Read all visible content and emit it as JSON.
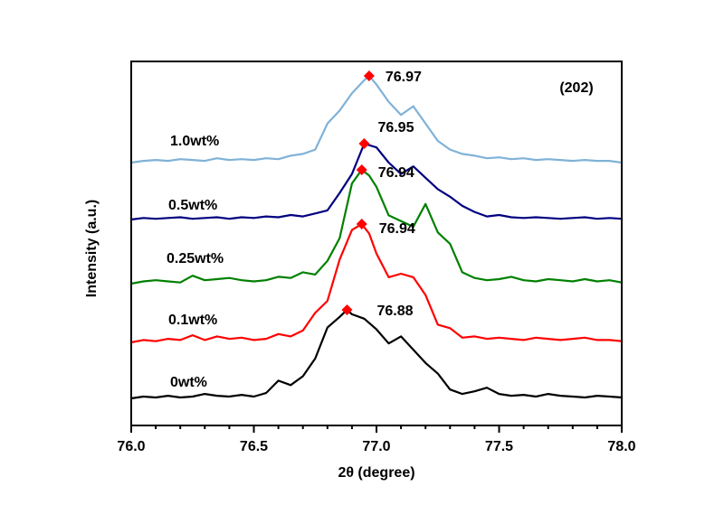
{
  "chart_data": {
    "type": "line",
    "title": "",
    "xlabel": "2θ (degree)",
    "ylabel": "Intensity (a.u.)",
    "xlim": [
      76.0,
      78.0
    ],
    "x_ticks": [
      {
        "value": 76.0,
        "label": "76.0"
      },
      {
        "value": 76.5,
        "label": "76.5"
      },
      {
        "value": 77.0,
        "label": "77.0"
      },
      {
        "value": 77.5,
        "label": "77.5"
      },
      {
        "value": 78.0,
        "label": "78.0"
      }
    ],
    "y_ticks_shown": false,
    "grid": false,
    "annotation": "(202)",
    "series": [
      {
        "name": "0wt%",
        "color": "#000000",
        "peak": {
          "x": 76.88,
          "label": "76.88"
        },
        "x": [
          76.0,
          76.05,
          76.1,
          76.15,
          76.2,
          76.25,
          76.3,
          76.35,
          76.4,
          76.45,
          76.5,
          76.55,
          76.6,
          76.65,
          76.7,
          76.75,
          76.8,
          76.85,
          76.88,
          76.9,
          76.95,
          77.0,
          77.05,
          77.1,
          77.15,
          77.2,
          77.25,
          77.3,
          77.35,
          77.4,
          77.45,
          77.5,
          77.55,
          77.6,
          77.65,
          77.7,
          77.75,
          77.8,
          77.85,
          77.9,
          77.95,
          78.0
        ],
        "y": [
          0.0,
          0.02,
          0.01,
          0.03,
          0.01,
          0.02,
          0.05,
          0.03,
          0.02,
          0.04,
          0.02,
          0.06,
          0.2,
          0.15,
          0.25,
          0.45,
          0.8,
          0.92,
          1.0,
          0.95,
          0.9,
          0.78,
          0.62,
          0.7,
          0.55,
          0.4,
          0.28,
          0.1,
          0.05,
          0.08,
          0.12,
          0.05,
          0.03,
          0.04,
          0.02,
          0.05,
          0.03,
          0.02,
          0.01,
          0.03,
          0.02,
          0.01
        ]
      },
      {
        "name": "0.1wt%",
        "color": "#ff0000",
        "peak": {
          "x": 76.94,
          "label": "76.94"
        },
        "x": [
          76.0,
          76.05,
          76.1,
          76.15,
          76.2,
          76.25,
          76.3,
          76.35,
          76.4,
          76.45,
          76.5,
          76.55,
          76.6,
          76.65,
          76.7,
          76.75,
          76.8,
          76.85,
          76.9,
          76.94,
          76.97,
          77.0,
          77.05,
          77.1,
          77.15,
          77.2,
          77.25,
          77.3,
          77.35,
          77.4,
          77.45,
          77.5,
          77.55,
          77.6,
          77.65,
          77.7,
          77.75,
          77.8,
          77.85,
          77.9,
          77.95,
          78.0
        ],
        "y": [
          0.0,
          0.02,
          0.01,
          0.03,
          0.02,
          0.06,
          0.02,
          0.05,
          0.03,
          0.04,
          0.02,
          0.03,
          0.07,
          0.05,
          0.1,
          0.25,
          0.35,
          0.7,
          0.95,
          1.0,
          0.92,
          0.75,
          0.55,
          0.58,
          0.55,
          0.4,
          0.15,
          0.12,
          0.04,
          0.05,
          0.03,
          0.04,
          0.03,
          0.02,
          0.04,
          0.03,
          0.02,
          0.03,
          0.04,
          0.02,
          0.02,
          0.01
        ]
      },
      {
        "name": "0.25wt%",
        "color": "#008000",
        "peak": {
          "x": 76.94,
          "label": "76.94"
        },
        "x": [
          76.0,
          76.05,
          76.1,
          76.15,
          76.2,
          76.25,
          76.3,
          76.35,
          76.4,
          76.45,
          76.5,
          76.55,
          76.6,
          76.65,
          76.7,
          76.75,
          76.8,
          76.85,
          76.9,
          76.94,
          76.97,
          77.0,
          77.05,
          77.1,
          77.15,
          77.2,
          77.25,
          77.3,
          77.35,
          77.4,
          77.45,
          77.5,
          77.55,
          77.6,
          77.65,
          77.7,
          77.75,
          77.8,
          77.85,
          77.9,
          77.95,
          78.0
        ],
        "y": [
          0.0,
          0.02,
          0.03,
          0.02,
          0.01,
          0.07,
          0.03,
          0.04,
          0.05,
          0.03,
          0.02,
          0.03,
          0.06,
          0.05,
          0.1,
          0.08,
          0.2,
          0.4,
          0.88,
          1.0,
          0.95,
          0.85,
          0.6,
          0.55,
          0.5,
          0.7,
          0.45,
          0.35,
          0.1,
          0.05,
          0.03,
          0.04,
          0.06,
          0.03,
          0.02,
          0.04,
          0.03,
          0.02,
          0.04,
          0.02,
          0.03,
          0.01
        ]
      },
      {
        "name": "0.5wt%",
        "color": "#000080",
        "peak": {
          "x": 76.95,
          "label": "76.95"
        },
        "x": [
          76.0,
          76.05,
          76.1,
          76.15,
          76.2,
          76.25,
          76.3,
          76.35,
          76.4,
          76.45,
          76.5,
          76.55,
          76.6,
          76.65,
          76.7,
          76.75,
          76.8,
          76.85,
          76.9,
          76.95,
          77.0,
          77.05,
          77.1,
          77.15,
          77.2,
          77.25,
          77.3,
          77.35,
          77.4,
          77.45,
          77.5,
          77.55,
          77.6,
          77.65,
          77.7,
          77.75,
          77.8,
          77.85,
          77.9,
          77.95,
          78.0
        ],
        "y": [
          0.0,
          0.02,
          0.01,
          0.02,
          0.03,
          0.01,
          0.02,
          0.03,
          0.01,
          0.03,
          0.02,
          0.04,
          0.03,
          0.06,
          0.04,
          0.08,
          0.12,
          0.35,
          0.6,
          1.0,
          0.95,
          0.75,
          0.6,
          0.7,
          0.55,
          0.4,
          0.3,
          0.18,
          0.1,
          0.04,
          0.06,
          0.03,
          0.02,
          0.03,
          0.02,
          0.01,
          0.02,
          0.03,
          0.01,
          0.02,
          0.01
        ]
      },
      {
        "name": "1.0wt%",
        "color": "#7fb2d8",
        "peak": {
          "x": 76.97,
          "label": "76.97"
        },
        "x": [
          76.0,
          76.05,
          76.1,
          76.15,
          76.2,
          76.25,
          76.3,
          76.35,
          76.4,
          76.45,
          76.5,
          76.55,
          76.6,
          76.65,
          76.7,
          76.75,
          76.8,
          76.85,
          76.9,
          76.95,
          76.97,
          77.0,
          77.05,
          77.1,
          77.15,
          77.2,
          77.25,
          77.3,
          77.35,
          77.4,
          77.45,
          77.5,
          77.55,
          77.6,
          77.65,
          77.7,
          77.75,
          77.8,
          77.85,
          77.9,
          77.95,
          78.0
        ],
        "y": [
          0.0,
          0.02,
          0.03,
          0.02,
          0.04,
          0.03,
          0.02,
          0.05,
          0.03,
          0.04,
          0.03,
          0.05,
          0.04,
          0.08,
          0.1,
          0.15,
          0.45,
          0.6,
          0.8,
          0.95,
          1.0,
          0.9,
          0.7,
          0.55,
          0.65,
          0.45,
          0.25,
          0.15,
          0.1,
          0.08,
          0.05,
          0.06,
          0.04,
          0.05,
          0.03,
          0.04,
          0.03,
          0.02,
          0.03,
          0.02,
          0.02,
          0.0
        ]
      }
    ]
  }
}
